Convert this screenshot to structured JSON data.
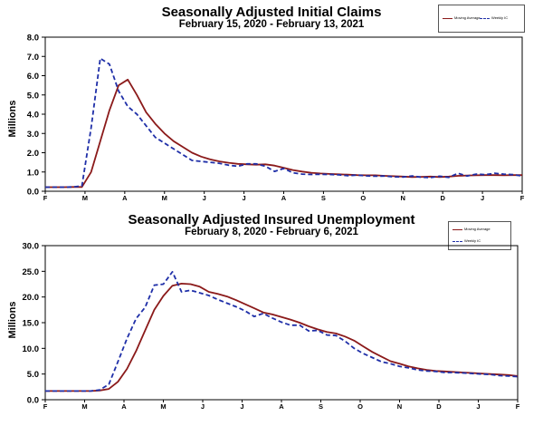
{
  "chart_data": [
    {
      "type": "line",
      "title": "Seasonally Adjusted Initial Claims",
      "subtitle": "February 15, 2020 - February 13, 2021",
      "ylabel": "Millions",
      "ylim": [
        0,
        8
      ],
      "yticks": [
        "0.0",
        "1.0",
        "2.0",
        "3.0",
        "4.0",
        "5.0",
        "6.0",
        "7.0",
        "8.0"
      ],
      "month_labels": [
        "F",
        "M",
        "A",
        "M",
        "J",
        "J",
        "A",
        "S",
        "O",
        "N",
        "D",
        "J",
        "F"
      ],
      "legend": [
        "Moving Average",
        "Weekly IC"
      ],
      "legend_position": "top-right",
      "grid": false,
      "series": [
        {
          "name": "Moving Average",
          "color": "#8b1a1a",
          "style": "solid",
          "values": [
            0.21,
            0.21,
            0.21,
            0.22,
            0.22,
            1.0,
            2.6,
            4.2,
            5.5,
            5.8,
            5.0,
            4.1,
            3.5,
            3.0,
            2.6,
            2.3,
            2.0,
            1.8,
            1.65,
            1.55,
            1.48,
            1.42,
            1.4,
            1.38,
            1.4,
            1.33,
            1.22,
            1.1,
            1.02,
            0.96,
            0.92,
            0.9,
            0.88,
            0.86,
            0.84,
            0.83,
            0.83,
            0.8,
            0.78,
            0.76,
            0.74,
            0.75,
            0.76,
            0.74,
            0.76,
            0.8,
            0.82,
            0.83,
            0.84,
            0.84,
            0.83,
            0.84,
            0.84
          ]
        },
        {
          "name": "Weekly IC",
          "color": "#1f2fa8",
          "style": "dashed",
          "values": [
            0.21,
            0.21,
            0.21,
            0.22,
            0.28,
            3.3,
            6.9,
            6.6,
            5.2,
            4.4,
            4.0,
            3.4,
            2.8,
            2.5,
            2.2,
            1.9,
            1.6,
            1.55,
            1.5,
            1.45,
            1.35,
            1.3,
            1.42,
            1.42,
            1.3,
            1.03,
            1.18,
            0.96,
            0.89,
            0.87,
            0.88,
            0.87,
            0.85,
            0.81,
            0.84,
            0.8,
            0.78,
            0.79,
            0.75,
            0.74,
            0.79,
            0.73,
            0.71,
            0.78,
            0.72,
            0.93,
            0.79,
            0.89,
            0.86,
            0.93,
            0.89,
            0.86,
            0.79
          ]
        }
      ]
    },
    {
      "type": "line",
      "title": "Seasonally Adjusted Insured Unemployment",
      "subtitle": "February 8, 2020 - February 6, 2021",
      "ylabel": "Millions",
      "ylim": [
        0,
        30
      ],
      "yticks": [
        "0.0",
        "5.0",
        "10.0",
        "15.0",
        "20.0",
        "25.0",
        "30.0"
      ],
      "month_labels": [
        "F",
        "M",
        "A",
        "M",
        "J",
        "J",
        "A",
        "S",
        "O",
        "N",
        "D",
        "J",
        "F"
      ],
      "legend": [
        "Moving Average",
        "Weekly IC"
      ],
      "legend_position": "top-right",
      "grid": false,
      "series": [
        {
          "name": "Moving Average",
          "color": "#8b1a1a",
          "style": "solid",
          "values": [
            1.7,
            1.7,
            1.7,
            1.7,
            1.7,
            1.7,
            1.8,
            2.1,
            3.5,
            6.0,
            9.5,
            13.5,
            17.5,
            20.2,
            22.2,
            22.6,
            22.5,
            22.0,
            21.0,
            20.6,
            20.1,
            19.4,
            18.6,
            17.8,
            17.0,
            16.6,
            16.1,
            15.6,
            15.0,
            14.3,
            13.7,
            13.2,
            12.9,
            12.3,
            11.5,
            10.4,
            9.3,
            8.4,
            7.5,
            7.0,
            6.5,
            6.1,
            5.8,
            5.6,
            5.5,
            5.4,
            5.3,
            5.2,
            5.1,
            5.0,
            4.9,
            4.8,
            4.6
          ]
        },
        {
          "name": "Weekly IC",
          "color": "#1f2fa8",
          "style": "dashed",
          "values": [
            1.7,
            1.7,
            1.7,
            1.7,
            1.7,
            1.7,
            1.9,
            3.0,
            7.4,
            11.9,
            15.8,
            18.0,
            22.3,
            22.5,
            24.9,
            21.0,
            21.3,
            20.8,
            20.3,
            19.5,
            18.8,
            18.1,
            17.3,
            16.2,
            16.8,
            15.9,
            15.1,
            14.5,
            14.5,
            13.4,
            13.5,
            12.6,
            12.5,
            11.4,
            10.0,
            9.0,
            8.2,
            7.4,
            7.0,
            6.5,
            6.2,
            5.8,
            5.6,
            5.5,
            5.3,
            5.3,
            5.2,
            5.1,
            5.0,
            4.9,
            4.7,
            4.6,
            4.5
          ]
        }
      ]
    }
  ]
}
